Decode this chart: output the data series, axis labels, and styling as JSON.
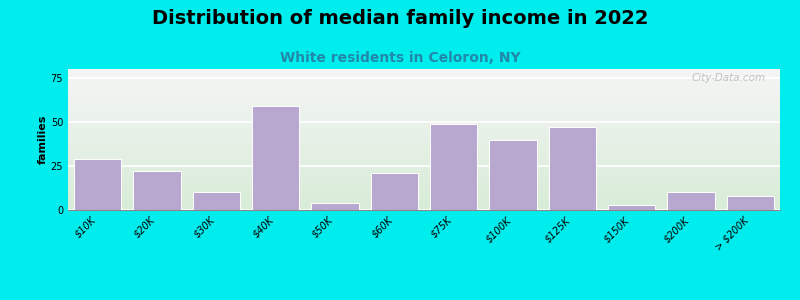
{
  "title": "Distribution of median family income in 2022",
  "subtitle": "White residents in Celoron, NY",
  "ylabel": "families",
  "categories": [
    "$10K",
    "$20K",
    "$30K",
    "$40K",
    "$50K",
    "$60K",
    "$75K",
    "$100K",
    "$125K",
    "$150K",
    "$200K",
    "> $200K"
  ],
  "values": [
    29,
    22,
    10,
    59,
    4,
    21,
    49,
    40,
    47,
    3,
    10,
    8
  ],
  "bar_color": "#b8a8d0",
  "bar_edge_color": "#ffffff",
  "bg_outer": "#00eded",
  "bg_plot_top_color": "#d8ecd8",
  "bg_plot_bottom_color": "#f5f5f5",
  "yticks": [
    0,
    25,
    50,
    75
  ],
  "ylim": [
    0,
    80
  ],
  "title_fontsize": 14,
  "subtitle_fontsize": 10,
  "subtitle_color": "#2288aa",
  "ylabel_fontsize": 8,
  "tick_fontsize": 7,
  "watermark": "City-Data.com",
  "bar_width": 0.8
}
